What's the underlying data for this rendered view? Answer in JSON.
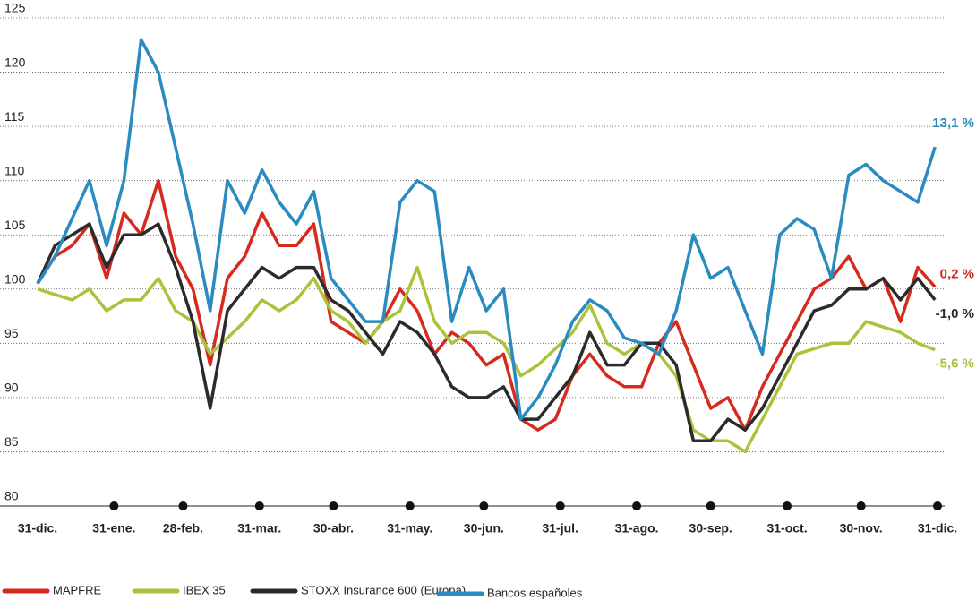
{
  "chart_data": {
    "type": "line",
    "xlim": [
      0,
      365
    ],
    "xticks": [
      {
        "value": 0,
        "label": "31-dic."
      },
      {
        "value": 31,
        "label": "31-ene."
      },
      {
        "value": 59,
        "label": "28-feb."
      },
      {
        "value": 90,
        "label": "31-mar."
      },
      {
        "value": 120,
        "label": "30-abr."
      },
      {
        "value": 151,
        "label": "31-may."
      },
      {
        "value": 181,
        "label": "30-jun."
      },
      {
        "value": 212,
        "label": "31-jul."
      },
      {
        "value": 243,
        "label": "31-ago."
      },
      {
        "value": 273,
        "label": "30-sep."
      },
      {
        "value": 304,
        "label": "31-oct."
      },
      {
        "value": 334,
        "label": "30-nov."
      },
      {
        "value": 365,
        "label": "31-dic."
      }
    ],
    "ylim": [
      80,
      125
    ],
    "yticks": [
      80,
      85,
      90,
      95,
      100,
      105,
      110,
      115,
      120,
      125
    ],
    "grid": true,
    "x": [
      0,
      7,
      14,
      21,
      28,
      35,
      42,
      49,
      56,
      63,
      70,
      77,
      84,
      91,
      98,
      105,
      112,
      119,
      126,
      133,
      140,
      147,
      154,
      161,
      168,
      175,
      182,
      189,
      196,
      203,
      210,
      217,
      224,
      231,
      238,
      245,
      252,
      259,
      266,
      273,
      280,
      287,
      294,
      301,
      308,
      315,
      322,
      329,
      336,
      343,
      350,
      357,
      364
    ],
    "series": [
      {
        "name": "MAPFRE",
        "color": "#d62a1e",
        "values": [
          100.5,
          103,
          104,
          106,
          101,
          107,
          105,
          110,
          103,
          100,
          93,
          101,
          103,
          107,
          104,
          104,
          106,
          97,
          96,
          95,
          97,
          100,
          98,
          94,
          96,
          95,
          93,
          94,
          88,
          87,
          88,
          92,
          94,
          92,
          91,
          91,
          95,
          97,
          93,
          89,
          90,
          87,
          91,
          94,
          97,
          100,
          101,
          103,
          100,
          101,
          97,
          102,
          100.2
        ]
      },
      {
        "name": "IBEX 35",
        "color": "#a8c43a",
        "values": [
          100,
          99.5,
          99,
          100,
          98,
          99,
          99,
          101,
          98,
          97,
          94,
          95.5,
          97,
          99,
          98,
          99,
          101,
          98,
          97,
          95,
          97,
          98,
          102,
          97,
          95,
          96,
          96,
          95,
          92,
          93,
          94.5,
          96,
          98.5,
          95,
          94,
          95,
          94,
          92,
          87,
          86,
          86,
          85,
          88,
          91,
          94,
          94.5,
          95,
          95,
          97,
          96.5,
          96,
          95,
          94.4
        ]
      },
      {
        "name": "STOXX Insurance 600 (Europa)",
        "color": "#2b2b2b",
        "values": [
          100.5,
          104,
          105,
          106,
          102,
          105,
          105,
          106,
          102,
          97,
          89,
          98,
          100,
          102,
          101,
          102,
          102,
          99,
          98,
          96,
          94,
          97,
          96,
          94,
          91,
          90,
          90,
          91,
          88,
          88,
          90,
          92,
          96,
          93,
          93,
          95,
          95,
          93,
          86,
          86,
          88,
          87,
          89,
          92,
          95,
          98,
          98.5,
          100,
          100,
          101,
          99,
          101,
          99
        ]
      },
      {
        "name": "Bancos españoles",
        "color": "#2a8bc0",
        "values": [
          100.5,
          103,
          106.5,
          110,
          104,
          110,
          123,
          120,
          113,
          106,
          98,
          110,
          107,
          111,
          108,
          106,
          109,
          101,
          99,
          97,
          97,
          108,
          110,
          109,
          97,
          102,
          98,
          100,
          88,
          90,
          93,
          97,
          99,
          98,
          95.5,
          95,
          94,
          98,
          105,
          101,
          102,
          98,
          94,
          105,
          106.5,
          105.5,
          101,
          110.5,
          111.5,
          110,
          109,
          108,
          113.1
        ]
      }
    ],
    "annotations": [
      {
        "text": "0,2 %",
        "color": "#d62a1e"
      },
      {
        "text": "-5,6 %",
        "color": "#a8c43a"
      },
      {
        "text": "-1,0 %",
        "color": "#2b2b2b"
      },
      {
        "text": "13,1 %",
        "color": "#2a8bc0"
      }
    ]
  }
}
